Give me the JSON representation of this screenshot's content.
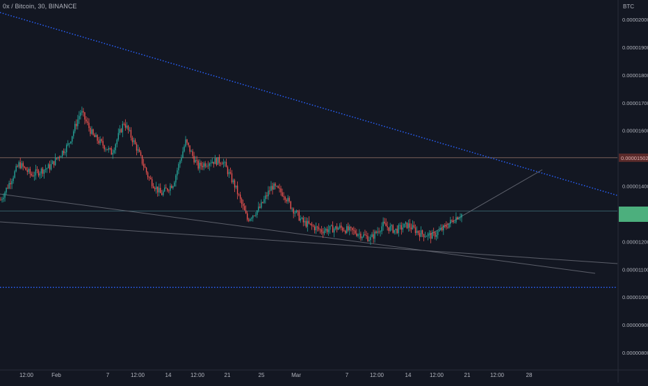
{
  "header": {
    "symbol_title": "0x / Bitcoin, 30, BINANCE",
    "currency": "BTC"
  },
  "colors": {
    "background": "#131722",
    "axis_text": "#b2b5be",
    "up_candle": "#26a69a",
    "down_candle": "#ef5350",
    "trendline_dotted": "#2962ff",
    "trendline_gray": "#5d606b",
    "horizontal_line": "#8d6e63",
    "price_label_bg": "#5a2a2a",
    "current_label_bg": "#4caf7d"
  },
  "chart_data": {
    "type": "candlestick",
    "y_axis": {
      "min": 7.5e-06,
      "max": 2.08e-06,
      "ticks": [
        "0.00002000",
        "0.00001900",
        "0.00001800",
        "0.00001700",
        "0.00001600",
        "0.00001502",
        "0.00001400",
        "0.00001300",
        "0.00001200",
        "0.00001100",
        "0.00001000",
        "0.00000900",
        "0.00000800"
      ]
    },
    "x_axis": {
      "labels": [
        "12:00",
        "Feb",
        "7",
        "12:00",
        "14",
        "12:00",
        "21",
        "25",
        "Mar",
        "7",
        "12:00",
        "14",
        "12:00",
        "21",
        "12:00",
        "28"
      ]
    },
    "price_markers": {
      "horizontal_level": "0.00001502",
      "current_price": "0.00001300"
    },
    "price_path": [
      [
        0,
        1.35
      ],
      [
        0.03,
        1.48
      ],
      [
        0.05,
        1.44
      ],
      [
        0.08,
        1.47
      ],
      [
        0.11,
        1.55
      ],
      [
        0.13,
        1.67
      ],
      [
        0.15,
        1.58
      ],
      [
        0.18,
        1.52
      ],
      [
        0.2,
        1.63
      ],
      [
        0.22,
        1.54
      ],
      [
        0.24,
        1.43
      ],
      [
        0.26,
        1.37
      ],
      [
        0.28,
        1.41
      ],
      [
        0.3,
        1.56
      ],
      [
        0.32,
        1.47
      ],
      [
        0.34,
        1.49
      ],
      [
        0.36,
        1.49
      ],
      [
        0.38,
        1.4
      ],
      [
        0.4,
        1.28
      ],
      [
        0.42,
        1.32
      ],
      [
        0.44,
        1.4
      ],
      [
        0.46,
        1.37
      ],
      [
        0.47,
        1.33
      ],
      [
        0.49,
        1.27
      ],
      [
        0.52,
        1.24
      ],
      [
        0.55,
        1.25
      ],
      [
        0.58,
        1.23
      ],
      [
        0.6,
        1.21
      ],
      [
        0.62,
        1.26
      ],
      [
        0.64,
        1.24
      ],
      [
        0.66,
        1.26
      ],
      [
        0.68,
        1.23
      ],
      [
        0.7,
        1.22
      ],
      [
        0.72,
        1.25
      ],
      [
        0.74,
        1.29
      ],
      [
        0.75,
        1.3
      ]
    ]
  }
}
